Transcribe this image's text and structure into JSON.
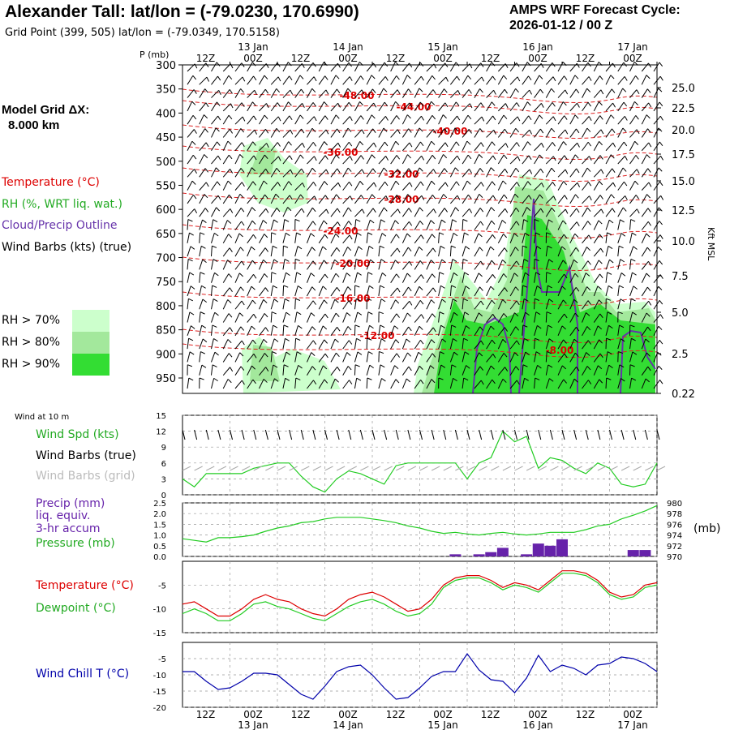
{
  "header": {
    "title": "Alexander Tall:  lat/lon = (-79.0230, 170.6990)",
    "subtitle": "Grid Point (399, 505) lat/lon = (-79.0349, 170.5158)",
    "cycle_line1": "AMPS WRF Forecast Cycle:",
    "cycle_line2": "2026-01-12 / 00  Z",
    "grid_line1": "Model Grid ΔX:",
    "grid_line2": "8.000 km"
  },
  "legend": {
    "temperature": "Temperature (°C)",
    "rh": "RH (%, WRT liq. wat.)",
    "cloud": "Cloud/Precip Outline",
    "wind": "Wind Barbs (kts) (true)",
    "rh70": "RH > 70%",
    "rh80": "RH > 80%",
    "rh90": "RH > 90%",
    "rh_colors": [
      "#ccffcc",
      "#a3e89c",
      "#33dd33"
    ]
  },
  "panels": {
    "wind10_title": "Wind at 10 m",
    "wind_spd": "Wind Spd (kts)",
    "wind_barbs_true": "Wind Barbs (true)",
    "wind_barbs_grid": "Wind Barbs (grid)",
    "precip": "Precip (mm)",
    "liq_equiv": "liq. equiv.",
    "accum": "3-hr accum",
    "pressure": "Pressure (mb)",
    "pressure_unit": "(mb)",
    "temperature": "Temperature (°C)",
    "dewpoint": "Dewpoint (°C)",
    "windchill": "Wind Chill T (°C)",
    "p_axis_label": "P (mb)",
    "kft_label": "Kft MSL"
  },
  "chart_data": {
    "type": "line",
    "x_hours": [
      0,
      3,
      6,
      9,
      12,
      15,
      18,
      21,
      24,
      27,
      30,
      33,
      36,
      39,
      42,
      45,
      48,
      51,
      54,
      57,
      60,
      63,
      66,
      69,
      72,
      75,
      78,
      81,
      84,
      87,
      90,
      93,
      96,
      99,
      102,
      105,
      108,
      111,
      114,
      117,
      120
    ],
    "time_ticks": [
      "12Z",
      "00Z",
      "12Z",
      "00Z",
      "12Z",
      "00Z",
      "12Z",
      "00Z",
      "12Z",
      "00Z"
    ],
    "time_tick_hours": [
      12,
      24,
      36,
      48,
      60,
      72,
      84,
      96,
      108,
      120
    ],
    "date_labels": [
      "13 Jan",
      "14 Jan",
      "15 Jan",
      "16 Jan",
      "17 Jan"
    ],
    "date_label_hours": [
      24,
      48,
      72,
      96,
      120
    ],
    "cross_section": {
      "pressure_levels": [
        "300",
        "350",
        "400",
        "450",
        "500",
        "550",
        "600",
        "650",
        "700",
        "750",
        "800",
        "850",
        "900",
        "950"
      ],
      "height_kft": [
        "25.0",
        "22.5",
        "20.0",
        "17.5",
        "15.0",
        "12.5",
        "10.0",
        "7.5",
        "5.0",
        "2.5",
        "0.22"
      ],
      "temperature_labels": [
        "-48.00",
        "-44.00",
        "-40.00",
        "-36.00",
        "-32.00",
        "-28.00",
        "-24.00",
        "-20.00",
        "-16.00",
        "-12.00",
        "-8.00"
      ]
    },
    "wind_speed_kts": {
      "ylim": [
        0,
        15
      ],
      "yticks": [
        "0",
        "3",
        "6",
        "9",
        "12",
        "15"
      ],
      "values": [
        3,
        1.5,
        4,
        4,
        4,
        4,
        5,
        5.5,
        6,
        6,
        3.5,
        1.5,
        0.5,
        3,
        4.5,
        4,
        3,
        2,
        5.5,
        6,
        6,
        6,
        6,
        6,
        3,
        6,
        7,
        12,
        10,
        11,
        5,
        7,
        6.5,
        5,
        4,
        6,
        5,
        2,
        1.5,
        2,
        6
      ]
    },
    "precip_mm": {
      "ylim": [
        0,
        2.5
      ],
      "yticks": [
        "0.0",
        "0.5",
        "1.0",
        "1.5",
        "2.0",
        "2.5"
      ],
      "values": [
        0,
        0,
        0,
        0,
        0,
        0,
        0,
        0,
        0,
        0,
        0,
        0,
        0,
        0,
        0,
        0,
        0,
        0,
        0,
        0,
        0,
        0,
        0,
        0.1,
        0,
        0.1,
        0.2,
        0.4,
        0,
        0.1,
        0.6,
        0.5,
        0.8,
        0,
        0,
        0,
        0,
        0,
        0.3,
        0.3,
        0
      ]
    },
    "pressure_mb": {
      "ylim": [
        970,
        980
      ],
      "yticks": [
        "970",
        "972",
        "974",
        "976",
        "978",
        "980"
      ],
      "values": [
        973.3,
        973.0,
        972.7,
        973.5,
        973.5,
        973.7,
        974.0,
        974.7,
        975.3,
        975.7,
        976.3,
        976.5,
        977.0,
        977.3,
        977.3,
        977.3,
        977.0,
        976.7,
        976.3,
        975.7,
        975.3,
        974.7,
        974.3,
        974.5,
        974.2,
        974.0,
        974.3,
        974.5,
        974.2,
        974.0,
        974.2,
        974.5,
        974.5,
        974.5,
        975.0,
        975.7,
        976.0,
        977.0,
        977.7,
        978.5,
        979.5
      ]
    },
    "temperature_c": {
      "ylim": [
        -15,
        0
      ],
      "yticks": [
        "-15",
        "-10",
        "-5"
      ],
      "temperature": [
        -9,
        -8.5,
        -10,
        -11.5,
        -11.5,
        -10,
        -8,
        -7,
        -8,
        -8.5,
        -10,
        -11,
        -11.5,
        -10,
        -8,
        -7,
        -6.5,
        -7.5,
        -9,
        -10.5,
        -10,
        -8,
        -5,
        -3.5,
        -3,
        -3,
        -4,
        -5.5,
        -4.5,
        -5,
        -6,
        -4,
        -2,
        -2,
        -2.5,
        -4,
        -6.5,
        -7.5,
        -7,
        -5,
        -4.5
      ],
      "dewpoint": [
        -11,
        -10,
        -11,
        -12.5,
        -12.5,
        -11,
        -9,
        -8.5,
        -9.5,
        -10,
        -11,
        -12,
        -12.5,
        -11,
        -9.5,
        -8.5,
        -8,
        -9,
        -10.5,
        -11.5,
        -11,
        -9,
        -5.5,
        -4,
        -3.5,
        -3.5,
        -4.5,
        -6,
        -5,
        -5.5,
        -6.5,
        -4.5,
        -2.5,
        -2.5,
        -3,
        -4.5,
        -7,
        -8,
        -7.5,
        -5.5,
        -5
      ]
    },
    "wind_chill_c": {
      "ylim": [
        -20,
        0
      ],
      "yticks": [
        "-20",
        "-15",
        "-10",
        "-5"
      ],
      "values": [
        -9,
        -9,
        -12,
        -14.5,
        -14,
        -12,
        -9.5,
        -9.5,
        -10,
        -13,
        -16,
        -17.5,
        -13.5,
        -9,
        -7.5,
        -7,
        -10,
        -14,
        -17.5,
        -17,
        -14,
        -10.5,
        -9,
        -9,
        -3.5,
        -8.5,
        -11.5,
        -12,
        -15.5,
        -11,
        -4,
        -9,
        -7,
        -8,
        -10,
        -7,
        -6.5,
        -4.5,
        -5,
        -6.5,
        -9
      ]
    },
    "colors": {
      "temperature": "#dd0000",
      "dewpoint": "#22cc22",
      "wind_speed": "#22cc22",
      "pressure": "#22cc22",
      "wind_chill": "#0000aa",
      "precip": "#6622aa",
      "cloud": "#6633aa",
      "barbs_grid": "#aaaaaa"
    }
  }
}
